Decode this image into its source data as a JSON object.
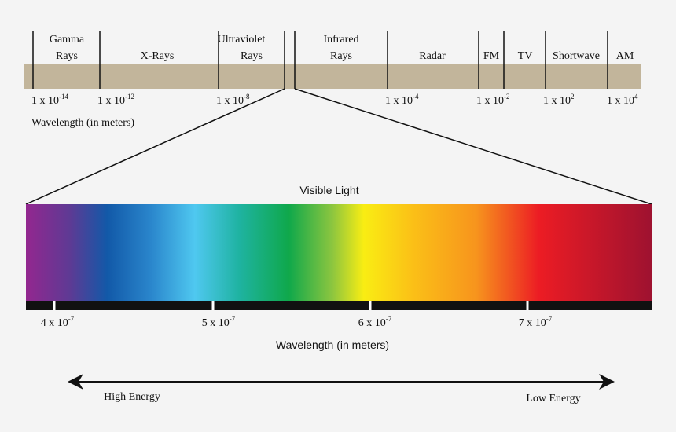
{
  "bands": [
    {
      "lines": [
        "Gamma",
        "Rays"
      ]
    },
    {
      "lines": [
        "X-Rays"
      ]
    },
    {
      "lines": [
        "Ultraviolet",
        "Rays"
      ]
    },
    {
      "lines": [
        "Infrared",
        "Rays"
      ]
    },
    {
      "lines": [
        "Radar"
      ]
    },
    {
      "lines": [
        "FM"
      ]
    },
    {
      "lines": [
        "TV"
      ]
    },
    {
      "lines": [
        "Shortwave"
      ]
    },
    {
      "lines": [
        "AM"
      ]
    }
  ],
  "spectrum_ticks": [
    {
      "base": "1 x 10",
      "exp": "-14"
    },
    {
      "base": "1 x 10",
      "exp": "-12"
    },
    {
      "base": "1 x 10",
      "exp": "-8"
    },
    {
      "base": "1 x 10",
      "exp": "-4"
    },
    {
      "base": "1 x 10",
      "exp": "-2"
    },
    {
      "base": "1 x 10",
      "exp": "2"
    },
    {
      "base": "1 x 10",
      "exp": "4"
    }
  ],
  "spectrum_axis_label": "Wavelength (in meters)",
  "visible_title": "Visible Light",
  "visible_ticks": [
    {
      "base": "4 x 10",
      "exp": "-7"
    },
    {
      "base": "5 x 10",
      "exp": "-7"
    },
    {
      "base": "6 x 10",
      "exp": "-7"
    },
    {
      "base": "7 x 10",
      "exp": "-7"
    }
  ],
  "visible_axis_label": "Wavelength (in meters)",
  "energy_left": "High Energy",
  "energy_right": "Low Energy"
}
